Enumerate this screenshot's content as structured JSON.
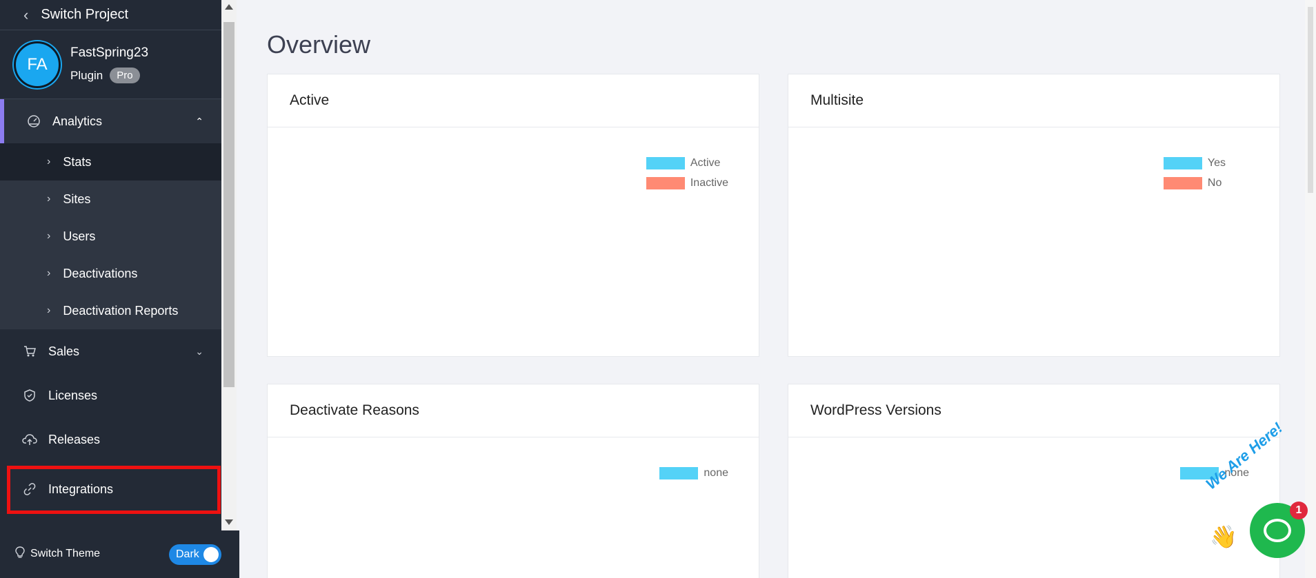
{
  "sidebar": {
    "switch_project": "Switch Project",
    "project": {
      "initials": "FA",
      "name": "FastSpring23",
      "type": "Plugin",
      "badge": "Pro"
    },
    "analytics": {
      "label": "Analytics",
      "items": [
        {
          "label": "Stats"
        },
        {
          "label": "Sites"
        },
        {
          "label": "Users"
        },
        {
          "label": "Deactivations"
        },
        {
          "label": "Deactivation Reports"
        }
      ]
    },
    "sales": "Sales",
    "licenses": "Licenses",
    "releases": "Releases",
    "integrations": "Integrations",
    "theme": {
      "label": "Switch Theme",
      "value": "Dark"
    }
  },
  "main": {
    "title": "Overview",
    "cards": [
      {
        "title": "Active",
        "legend": [
          {
            "label": "Active",
            "color": "#54d2f7"
          },
          {
            "label": "Inactive",
            "color": "#ff8a73"
          }
        ]
      },
      {
        "title": "Multisite",
        "legend": [
          {
            "label": "Yes",
            "color": "#54d2f7"
          },
          {
            "label": "No",
            "color": "#ff8a73"
          }
        ]
      },
      {
        "title": "Deactivate Reasons",
        "legend": [
          {
            "label": "none",
            "color": "#54d2f7"
          }
        ]
      },
      {
        "title": "WordPress Versions",
        "legend": [
          {
            "label": "none",
            "color": "#54d2f7"
          }
        ]
      }
    ]
  },
  "chat_widget": {
    "tagline": "We Are Here!",
    "unread": "1"
  }
}
